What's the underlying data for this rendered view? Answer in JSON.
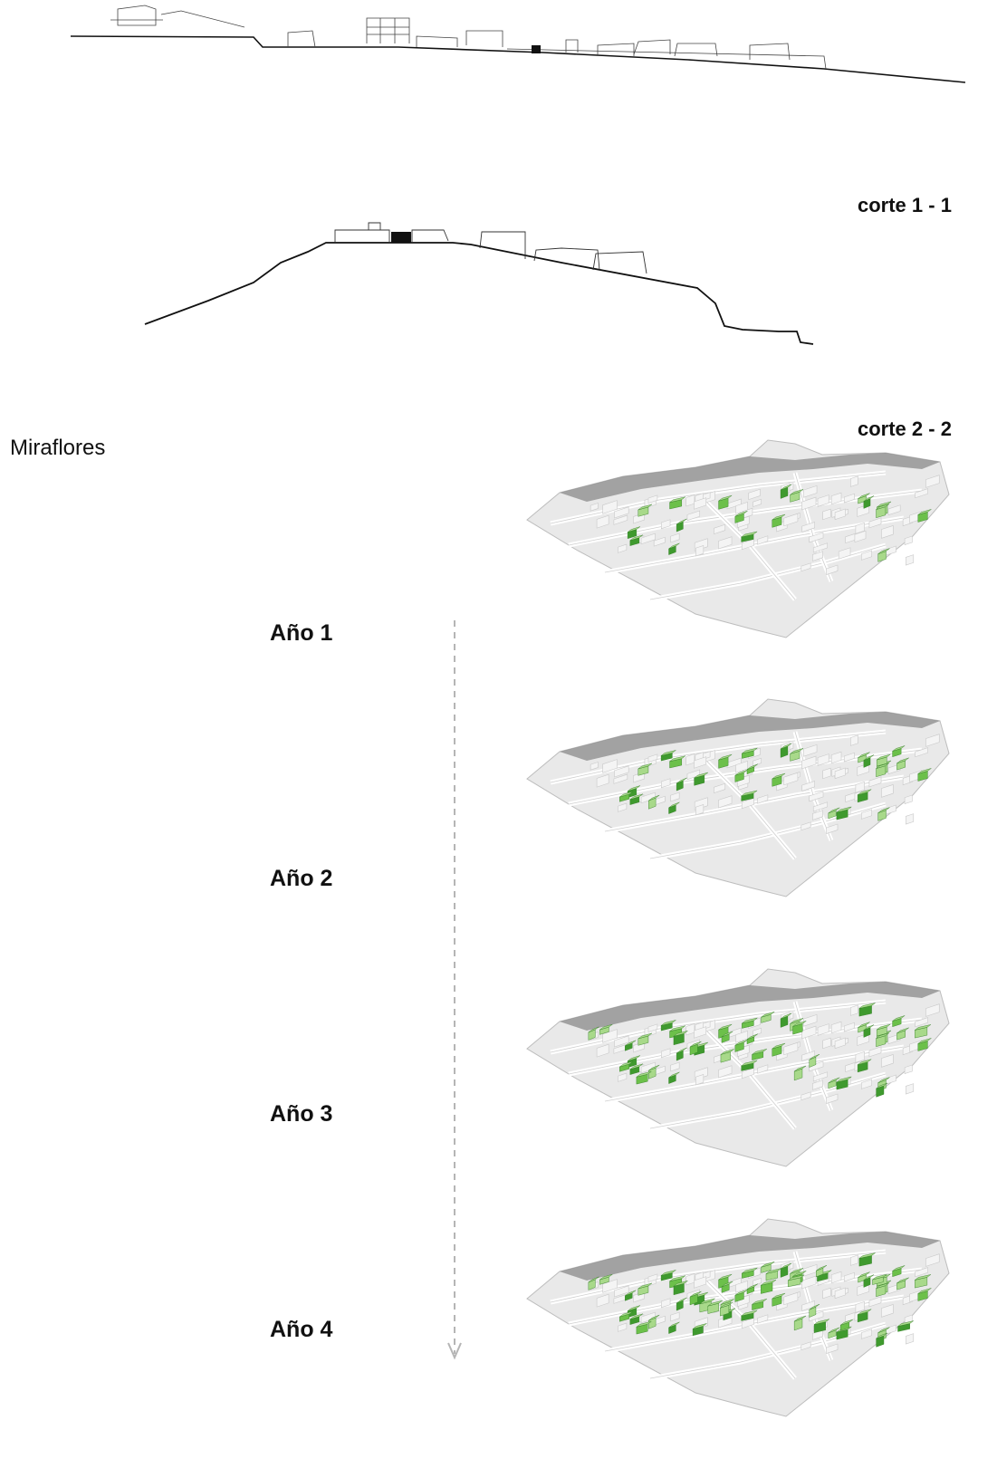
{
  "section_1": {
    "label": "corte 1 - 1"
  },
  "section_2": {
    "label": "corte 2 - 2"
  },
  "place": {
    "name": "Miraflores"
  },
  "timeline": {
    "years": [
      {
        "label": "Año 1",
        "green_blocks": 18
      },
      {
        "label": "Año 2",
        "green_blocks": 30
      },
      {
        "label": "Año 3",
        "green_blocks": 46
      },
      {
        "label": "Año 4",
        "green_blocks": 60
      }
    ]
  },
  "colors": {
    "line": "#111111",
    "terrain": "#e9e9e9",
    "terrain_edge": "#bdbdbd",
    "ridge": "#8a8a8a",
    "green_light": "#a8d98a",
    "green_mid": "#6cc04a",
    "green_dark": "#3f9a2e",
    "arrow": "#b5b5b5"
  }
}
